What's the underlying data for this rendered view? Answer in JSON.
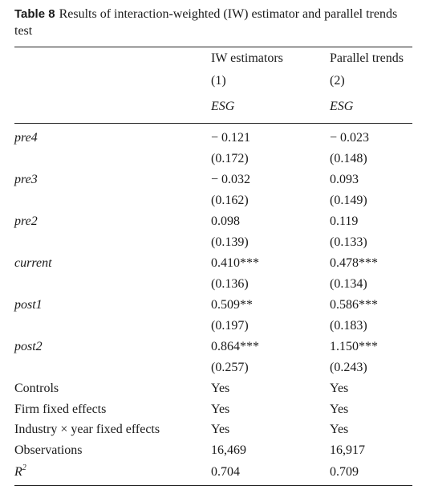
{
  "caption": {
    "label": "Table 8",
    "text": "Results of interaction-weighted (IW) estimator and parallel trends test"
  },
  "header": {
    "col1": {
      "title": "IW estimators",
      "number": "(1)",
      "dep": "ESG"
    },
    "col2": {
      "title": "Parallel trends",
      "number": "(2)",
      "dep": "ESG"
    }
  },
  "rows": [
    {
      "label": "pre4",
      "c1": "− 0.121",
      "c2": "− 0.023",
      "se1": "(0.172)",
      "se2": "(0.148)"
    },
    {
      "label": "pre3",
      "c1": "− 0.032",
      "c2": "0.093",
      "se1": "(0.162)",
      "se2": "(0.149)"
    },
    {
      "label": "pre2",
      "c1": "0.098",
      "c2": "0.119",
      "se1": "(0.139)",
      "se2": "(0.133)"
    },
    {
      "label": "current",
      "c1": "0.410***",
      "c2": "0.478***",
      "se1": "(0.136)",
      "se2": "(0.134)"
    },
    {
      "label": "post1",
      "c1": "0.509**",
      "c2": "0.586***",
      "se1": "(0.197)",
      "se2": "(0.183)"
    },
    {
      "label": "post2",
      "c1": "0.864***",
      "c2": "1.150***",
      "se1": "(0.257)",
      "se2": "(0.243)"
    }
  ],
  "stats": [
    {
      "label": "Controls",
      "c1": "Yes",
      "c2": "Yes"
    },
    {
      "label": "Firm fixed effects",
      "c1": "Yes",
      "c2": "Yes"
    },
    {
      "label": "Industry × year fixed effects",
      "c1": "Yes",
      "c2": "Yes"
    },
    {
      "label": "Observations",
      "c1": "16,469",
      "c2": "16,917"
    }
  ],
  "r2": {
    "label": "R",
    "sup": "2",
    "c1": "0.704",
    "c2": "0.709"
  }
}
